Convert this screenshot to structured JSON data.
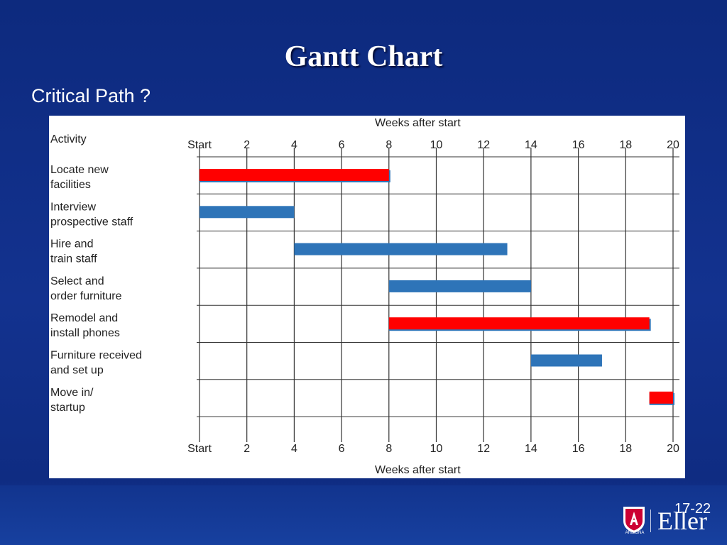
{
  "slide": {
    "title": "Gantt Chart",
    "subtitle": "Critical Path ?",
    "page_number": "17-22",
    "logo_text": "Eller",
    "logo_subtext": "ARIZONA"
  },
  "colors": {
    "critical": "#ff0000",
    "normal": "#2e74b8",
    "grid": "#333333",
    "background": "#0d2a7e"
  },
  "chart_data": {
    "type": "gantt",
    "title": "",
    "xlabel": "Weeks after start",
    "activity_header": "Activity",
    "xlim": [
      0,
      20
    ],
    "x_ticks": [
      {
        "value": 0,
        "label": "Start"
      },
      {
        "value": 2,
        "label": "2"
      },
      {
        "value": 4,
        "label": "4"
      },
      {
        "value": 6,
        "label": "6"
      },
      {
        "value": 8,
        "label": "8"
      },
      {
        "value": 10,
        "label": "10"
      },
      {
        "value": 12,
        "label": "12"
      },
      {
        "value": 14,
        "label": "14"
      },
      {
        "value": 16,
        "label": "16"
      },
      {
        "value": 18,
        "label": "18"
      },
      {
        "value": 20,
        "label": "20"
      }
    ],
    "grid": true,
    "tasks": [
      {
        "line1": "Locate new",
        "line2": "facilities",
        "start": 0,
        "end": 8,
        "critical": true
      },
      {
        "line1": "Interview",
        "line2": "prospective staff",
        "start": 0,
        "end": 4,
        "critical": false
      },
      {
        "line1": "Hire and",
        "line2": "train staff",
        "start": 4,
        "end": 13,
        "critical": false
      },
      {
        "line1": "Select and",
        "line2": "order furniture",
        "start": 8,
        "end": 14,
        "critical": false
      },
      {
        "line1": "Remodel and",
        "line2": "install phones",
        "start": 8,
        "end": 19,
        "critical": true
      },
      {
        "line1": "Furniture received",
        "line2": "and set up",
        "start": 14,
        "end": 17,
        "critical": false
      },
      {
        "line1": "Move in/",
        "line2": "startup",
        "start": 19,
        "end": 20,
        "critical": true
      }
    ]
  }
}
